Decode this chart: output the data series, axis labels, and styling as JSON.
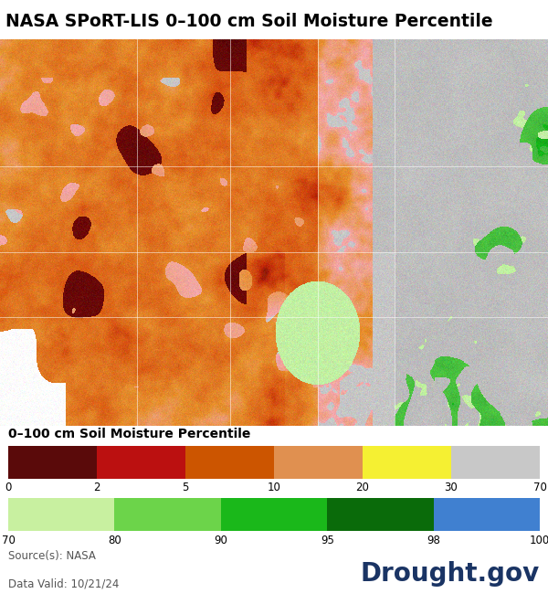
{
  "title": "NASA SPoRT-LIS 0–100 cm Soil Moisture Percentile",
  "title_fontsize": 13.5,
  "title_fontweight": "bold",
  "legend_title": "0–100 cm Soil Moisture Percentile",
  "legend_title_fontsize": 10,
  "legend_title_fontweight": "bold",
  "source_text": "Source(s): NASA",
  "date_text": "Data Valid: 10/21/24",
  "drought_text": "Drought.gov",
  "drought_color": "#1a3464",
  "source_fontsize": 8.5,
  "drought_fontsize": 20,
  "background_color": "#ffffff",
  "colorbar_top_colors": [
    "#5a0a0a",
    "#bb1010",
    "#cc5500",
    "#e09050",
    "#f5f032",
    "#c8c8c8"
  ],
  "colorbar_top_labels": [
    "0",
    "2",
    "5",
    "10",
    "20",
    "30",
    "70"
  ],
  "colorbar_bottom_colors": [
    "#c8f0a0",
    "#6cd44a",
    "#1ab81a",
    "#0a6b0a",
    "#4080d0"
  ],
  "colorbar_bottom_labels": [
    "70",
    "80",
    "90",
    "95",
    "98",
    "100"
  ],
  "fig_width": 6.0,
  "fig_height": 6.61
}
